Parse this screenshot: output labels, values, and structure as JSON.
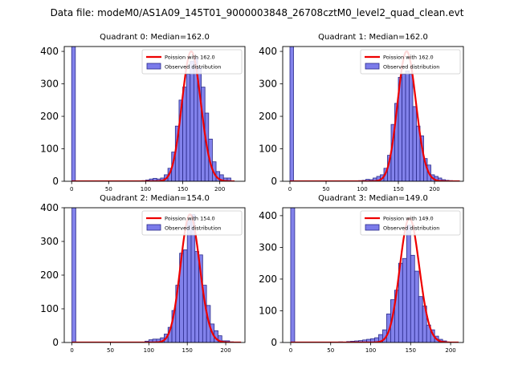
{
  "figure_title": "Data file: modeM0/AS1A09_145T01_9000003848_26708cztM0_level2_quad_clean.evt",
  "colors": {
    "bar_fill": "#7b7bea",
    "bar_edge": "#2a2a8a",
    "poisson_line": "#ee0000",
    "axis": "#000000"
  },
  "chart_data": [
    {
      "type": "bar",
      "title": "Quadrant 0: Median=162.0",
      "xlim": [
        -10,
        234
      ],
      "ylim": [
        0,
        415
      ],
      "xticks": [
        0,
        50,
        100,
        150,
        200
      ],
      "yticks": [
        0,
        100,
        200,
        300,
        400
      ],
      "legend": {
        "position": "top-right",
        "line_label": "Poission with 162.0",
        "bar_label": "Observed distribution"
      },
      "bin_edges": [
        0,
        5,
        95,
        100,
        105,
        110,
        115,
        120,
        125,
        130,
        135,
        140,
        145,
        150,
        155,
        160,
        165,
        170,
        175,
        180,
        185,
        190,
        195,
        200,
        205,
        210,
        215
      ],
      "bin_counts": [
        415,
        0,
        2,
        4,
        7,
        9,
        7,
        10,
        20,
        40,
        90,
        170,
        250,
        290,
        330,
        370,
        380,
        350,
        290,
        210,
        130,
        60,
        30,
        20,
        10,
        10
      ],
      "poisson_lambda": 162,
      "poisson_scale": 400,
      "poisson_x_range": [
        0,
        220
      ]
    },
    {
      "type": "bar",
      "title": "Quadrant 1: Median=162.0",
      "xlim": [
        -10,
        240
      ],
      "ylim": [
        0,
        415
      ],
      "xticks": [
        0,
        50,
        100,
        150,
        200
      ],
      "yticks": [
        0,
        100,
        200,
        300,
        400
      ],
      "legend": {
        "position": "top-right",
        "line_label": "Poission with 162.0",
        "bar_label": "Observed distribution"
      },
      "bin_edges": [
        0,
        5,
        95,
        100,
        105,
        110,
        115,
        120,
        125,
        130,
        135,
        140,
        145,
        150,
        155,
        160,
        165,
        170,
        175,
        180,
        185,
        190,
        195,
        200,
        205,
        210,
        215,
        220,
        225
      ],
      "bin_counts": [
        415,
        0,
        2,
        3,
        6,
        5,
        10,
        15,
        20,
        40,
        80,
        175,
        240,
        320,
        330,
        340,
        330,
        230,
        170,
        140,
        70,
        50,
        20,
        15,
        10,
        5,
        3,
        2
      ],
      "poisson_lambda": 162,
      "poisson_scale": 400,
      "poisson_x_range": [
        0,
        235
      ]
    },
    {
      "type": "bar",
      "title": "Quadrant 2: Median=154.0",
      "xlim": [
        -10,
        225
      ],
      "ylim": [
        0,
        400
      ],
      "xticks": [
        0,
        50,
        100,
        150,
        200
      ],
      "yticks": [
        0,
        100,
        200,
        300,
        400
      ],
      "legend": {
        "position": "top-right",
        "line_label": "Poission with 154.0",
        "bar_label": "Observed distribution"
      },
      "bin_edges": [
        0,
        5,
        90,
        95,
        100,
        105,
        110,
        115,
        120,
        125,
        130,
        135,
        140,
        145,
        150,
        155,
        160,
        165,
        170,
        175,
        180,
        185,
        190,
        195,
        200,
        205,
        210
      ],
      "bin_counts": [
        400,
        0,
        1,
        4,
        8,
        10,
        10,
        14,
        25,
        45,
        95,
        170,
        265,
        275,
        360,
        380,
        270,
        260,
        170,
        110,
        55,
        35,
        20,
        5,
        5,
        2
      ],
      "poisson_lambda": 154,
      "poisson_scale": 380,
      "poisson_x_range": [
        0,
        220
      ]
    },
    {
      "type": "bar",
      "title": "Quadrant 3: Median=149.0",
      "xlim": [
        -10,
        216
      ],
      "ylim": [
        0,
        425
      ],
      "xticks": [
        0,
        50,
        100,
        150,
        200
      ],
      "yticks": [
        0,
        100,
        200,
        300,
        400
      ],
      "legend": {
        "position": "top-right",
        "line_label": "Poission with 149.0",
        "bar_label": "Observed distribution"
      },
      "bin_edges": [
        0,
        5,
        60,
        65,
        70,
        75,
        80,
        85,
        90,
        95,
        100,
        105,
        110,
        115,
        120,
        125,
        130,
        135,
        140,
        145,
        150,
        155,
        160,
        165,
        170,
        175,
        180,
        185,
        190,
        195
      ],
      "bin_counts": [
        425,
        0,
        2,
        1,
        3,
        4,
        5,
        6,
        8,
        10,
        12,
        15,
        25,
        40,
        90,
        135,
        165,
        250,
        265,
        370,
        275,
        225,
        145,
        115,
        55,
        40,
        20,
        10,
        5
      ],
      "poisson_lambda": 149,
      "poisson_scale": 392,
      "poisson_x_range": [
        0,
        210
      ]
    }
  ]
}
